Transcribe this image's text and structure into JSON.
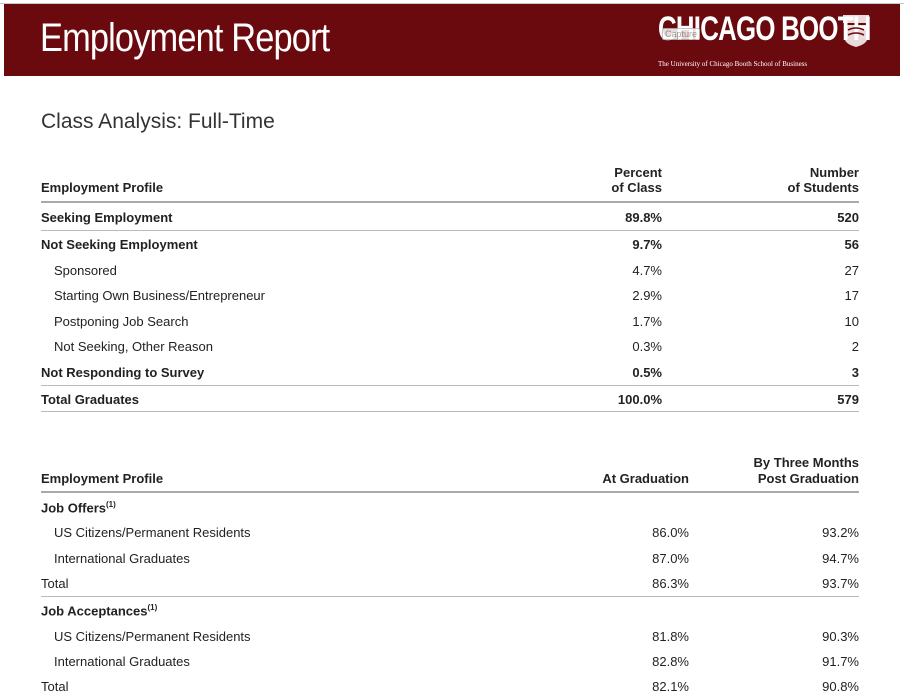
{
  "header": {
    "title": "Employment Report",
    "brand_name": "CHICAGO BOOTH",
    "capture_label": "Capture",
    "brand_tagline": "The University of Chicago Booth School of Business",
    "background_color": "#6b0a0e"
  },
  "section_title": "Class Analysis: Full-Time",
  "table1": {
    "header": {
      "label": "Employment Profile",
      "col1_line1": "Percent",
      "col1_line2": "of Class",
      "col2_line1": "Number",
      "col2_line2": "of Students"
    },
    "rows": [
      {
        "label": "Seeking Employment",
        "percent": "89.8%",
        "number": "520"
      },
      {
        "label": "Not Seeking Employment",
        "percent": "9.7%",
        "number": "56"
      },
      {
        "label": "Sponsored",
        "percent": "4.7%",
        "number": "27"
      },
      {
        "label": "Starting Own Business/Entrepreneur",
        "percent": "2.9%",
        "number": "17"
      },
      {
        "label": "Postponing Job Search",
        "percent": "1.7%",
        "number": "10"
      },
      {
        "label": "Not Seeking, Other Reason",
        "percent": "0.3%",
        "number": "2"
      },
      {
        "label": "Not Responding to Survey",
        "percent": "0.5%",
        "number": "3"
      },
      {
        "label": "Total Graduates",
        "percent": "100.0%",
        "number": "579"
      }
    ]
  },
  "table2": {
    "header": {
      "label": "Employment Profile",
      "col1": "At Graduation",
      "col2_line1": "By Three Months",
      "col2_line2": "Post Graduation"
    },
    "job_offers": {
      "label": "Job Offers",
      "footnote": "(1)",
      "rows": [
        {
          "label": "US Citizens/Permanent Residents",
          "at_grad": "86.0%",
          "three_months": "93.2%"
        },
        {
          "label": "International Graduates",
          "at_grad": "87.0%",
          "three_months": "94.7%"
        },
        {
          "label": "Total",
          "at_grad": "86.3%",
          "three_months": "93.7%"
        }
      ]
    },
    "job_acceptances": {
      "label": "Job Acceptances",
      "footnote": "(1)",
      "rows": [
        {
          "label": "US Citizens/Permanent Residents",
          "at_grad": "81.8%",
          "three_months": "90.3%"
        },
        {
          "label": "International Graduates",
          "at_grad": "82.8%",
          "three_months": "91.7%"
        },
        {
          "label": "Total",
          "at_grad": "82.1%",
          "three_months": "90.8%"
        }
      ]
    }
  }
}
